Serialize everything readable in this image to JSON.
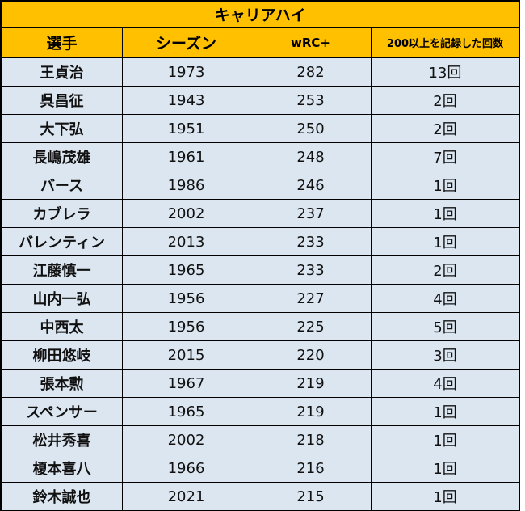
{
  "table": {
    "title": "キャリアハイ",
    "headers": [
      "選手",
      "シーズン",
      "wRC+",
      "200以上を記録した回数"
    ],
    "rows": [
      [
        "王貞治",
        "1973",
        "282",
        "13回"
      ],
      [
        "呉昌征",
        "1943",
        "253",
        "2回"
      ],
      [
        "大下弘",
        "1951",
        "250",
        "2回"
      ],
      [
        "長嶋茂雄",
        "1961",
        "248",
        "7回"
      ],
      [
        "バース",
        "1986",
        "246",
        "1回"
      ],
      [
        "カブレラ",
        "2002",
        "237",
        "1回"
      ],
      [
        "バレンティン",
        "2013",
        "233",
        "1回"
      ],
      [
        "江藤慎一",
        "1965",
        "233",
        "2回"
      ],
      [
        "山内一弘",
        "1956",
        "227",
        "4回"
      ],
      [
        "中西太",
        "1956",
        "225",
        "5回"
      ],
      [
        "柳田悠岐",
        "2015",
        "220",
        "3回"
      ],
      [
        "張本勲",
        "1967",
        "219",
        "4回"
      ],
      [
        "スペンサー",
        "1965",
        "219",
        "1回"
      ],
      [
        "松井秀喜",
        "2002",
        "218",
        "1回"
      ],
      [
        "榎本喜八",
        "1966",
        "216",
        "1回"
      ],
      [
        "鈴木誠也",
        "2021",
        "215",
        "1回"
      ]
    ]
  },
  "colors": {
    "header_bg": "#FFC000",
    "row_bg": "#DCE6F1",
    "border": "#000000"
  }
}
